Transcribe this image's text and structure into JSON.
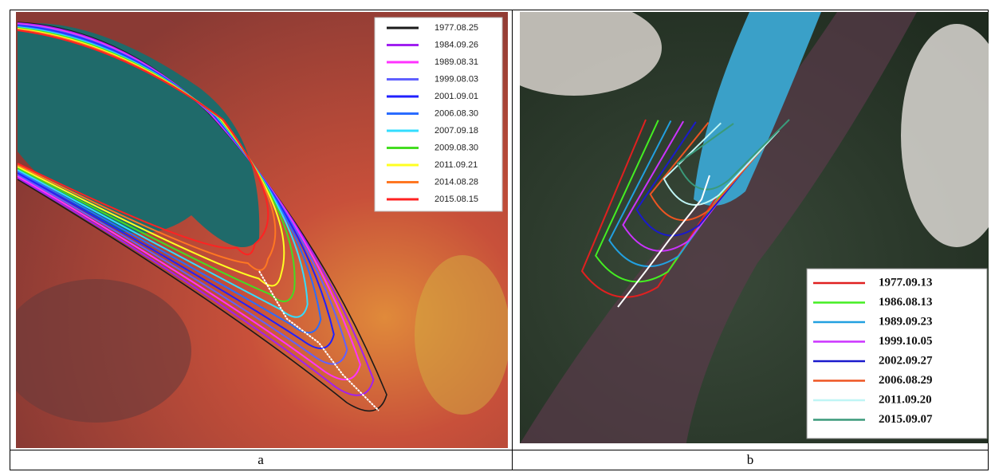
{
  "panels": [
    {
      "caption": "a",
      "legend": [
        {
          "label": "1977.08.25",
          "color": "#1a1a1a"
        },
        {
          "label": "1984.09.26",
          "color": "#a020f0"
        },
        {
          "label": "1989.08.31",
          "color": "#ff33ff"
        },
        {
          "label": "1999.08.03",
          "color": "#6060ff"
        },
        {
          "label": "2001.09.01",
          "color": "#2020ff"
        },
        {
          "label": "2006.08.30",
          "color": "#2a6cff"
        },
        {
          "label": "2007.09.18",
          "color": "#33ddff"
        },
        {
          "label": "2009.08.30",
          "color": "#44dd22"
        },
        {
          "label": "2011.09.21",
          "color": "#ffff22"
        },
        {
          "label": "2014.08.28",
          "color": "#ff7722"
        },
        {
          "label": "2015.08.15",
          "color": "#ff2222"
        }
      ]
    },
    {
      "caption": "b",
      "legend": [
        {
          "label": "1977.09.13",
          "color": "#e02020"
        },
        {
          "label": "1986.08.13",
          "color": "#44ee22"
        },
        {
          "label": "1989.09.23",
          "color": "#22a0e0"
        },
        {
          "label": "1999.10.05",
          "color": "#cc33ff"
        },
        {
          "label": "2002.09.27",
          "color": "#1a1acc"
        },
        {
          "label": "2006.08.29",
          "color": "#ee5522"
        },
        {
          "label": "2011.09.20",
          "color": "#bff5f5"
        },
        {
          "label": "2015.09.07",
          "color": "#3a9a7a"
        }
      ]
    }
  ]
}
